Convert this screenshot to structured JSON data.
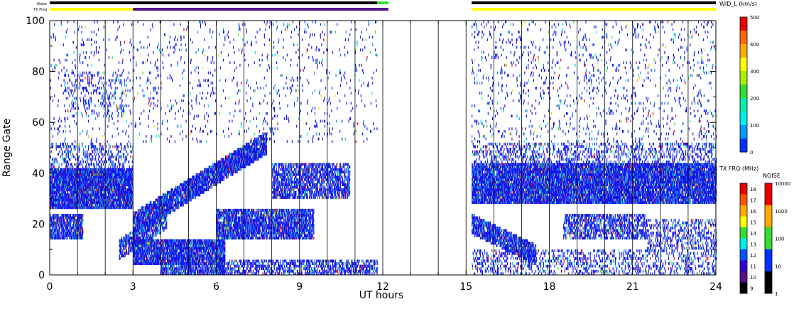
{
  "chart_data": {
    "type": "heatmap",
    "xlabel": "UT hours",
    "ylabel": "Range Gate",
    "xlim": [
      0,
      24
    ],
    "ylim": [
      0,
      100
    ],
    "x_ticks": [
      0,
      3,
      6,
      9,
      12,
      15,
      18,
      21,
      24
    ],
    "y_ticks": [
      0,
      20,
      40,
      60,
      80,
      100
    ],
    "hour_gridlines": [
      1,
      2,
      3,
      4,
      5,
      6,
      7,
      8,
      9,
      10,
      11,
      12,
      13,
      14,
      15,
      16,
      17,
      18,
      19,
      20,
      21,
      22,
      23
    ],
    "data_gaps": [
      [
        11.9,
        15.2
      ]
    ],
    "status_bars": {
      "noise_label": "Noise",
      "txfreq_label": "TX Freq",
      "noise_segments": [
        {
          "start": 0,
          "end": 11.8,
          "color": "#000000"
        },
        {
          "start": 11.8,
          "end": 12.2,
          "color": "#33dd33"
        },
        {
          "start": 15.2,
          "end": 24,
          "color": "#000000"
        }
      ],
      "txfreq_segments": [
        {
          "start": 0,
          "end": 3,
          "color": "#ffff00"
        },
        {
          "start": 3,
          "end": 11.8,
          "color": "#55118a"
        },
        {
          "start": 11.8,
          "end": 12.2,
          "color": "#55118a"
        },
        {
          "start": 15.2,
          "end": 24,
          "color": "#ffff00"
        }
      ]
    },
    "bands": [
      {
        "t0": 0,
        "t1": 3,
        "r0": 26,
        "r1": 42,
        "density": 0.9
      },
      {
        "t0": 0,
        "t1": 1.2,
        "r0": 14,
        "r1": 24,
        "density": 0.75
      },
      {
        "t0": 0,
        "t1": 3,
        "r0": 42,
        "r1": 52,
        "density": 0.25
      },
      {
        "t0": 0.5,
        "t1": 2.8,
        "r0": 62,
        "r1": 80,
        "density": 0.12
      },
      {
        "t0": 3,
        "t1": 6.3,
        "r0": 4,
        "r1": 14,
        "density": 0.85
      },
      {
        "t0": 4,
        "t1": 6.3,
        "r0": 0,
        "r1": 4,
        "density": 0.7
      },
      {
        "t0": 6,
        "t1": 11.8,
        "r0": 0,
        "r1": 6,
        "density": 0.45
      },
      {
        "t0": 6,
        "t1": 9.5,
        "r0": 14,
        "r1": 26,
        "density": 0.75
      },
      {
        "t0": 8,
        "t1": 10.8,
        "r0": 30,
        "r1": 44,
        "density": 0.6
      },
      {
        "t0": 15.2,
        "t1": 24,
        "r0": 28,
        "r1": 44,
        "density": 0.85
      },
      {
        "t0": 15.2,
        "t1": 24,
        "r0": 44,
        "r1": 52,
        "density": 0.25
      },
      {
        "t0": 18.5,
        "t1": 21.5,
        "r0": 14,
        "r1": 24,
        "density": 0.5
      },
      {
        "t0": 21.5,
        "t1": 24,
        "r0": 10,
        "r1": 22,
        "density": 0.3
      },
      {
        "t0": 15.2,
        "t1": 24,
        "r0": 0,
        "r1": 10,
        "density": 0.22
      },
      {
        "t0": 15.2,
        "t1": 24,
        "r0": 52,
        "r1": 100,
        "density": 0.05
      },
      {
        "t0": 0,
        "t1": 11.8,
        "r0": 52,
        "r1": 100,
        "density": 0.035
      }
    ],
    "trending_bands": [
      {
        "t0": 3,
        "t1": 7.8,
        "rstart": 20,
        "rend": 52,
        "width": 9,
        "density": 0.85
      },
      {
        "t0": 2.5,
        "t1": 4.2,
        "rstart": 10,
        "rend": 22,
        "width": 8,
        "density": 0.7
      },
      {
        "t0": 15.2,
        "t1": 17.5,
        "rstart": 20,
        "rend": 8,
        "width": 8,
        "density": 0.8
      }
    ],
    "colorbars": [
      {
        "label": "WID_L (km/s)",
        "ticks": [
          "500",
          "400",
          "300",
          "200",
          "100",
          "0"
        ],
        "colors": [
          "#ee0000",
          "#ff6600",
          "#ffaa00",
          "#ffff00",
          "#aaee00",
          "#33dd33",
          "#00eeaa",
          "#00eeee",
          "#0099ff",
          "#0033ff"
        ]
      },
      {
        "label": "TX FRQ (MHz)",
        "ticks": [
          "18",
          "17",
          "16",
          "15",
          "14",
          "13",
          "12",
          "11",
          "10",
          "9"
        ],
        "colors": [
          "#ee0000",
          "#ff5500",
          "#ffaa00",
          "#ffff00",
          "#33dd33",
          "#00eeee",
          "#0055ff",
          "#3300cc",
          "#55118a",
          "#000000"
        ]
      },
      {
        "label": "NOISE",
        "ticks": [
          "10000",
          "1000",
          "100",
          "10",
          "1"
        ],
        "colors": [
          "#ee0000",
          "#ffaa00",
          "#33dd33",
          "#0033ff",
          "#000000"
        ]
      }
    ]
  }
}
